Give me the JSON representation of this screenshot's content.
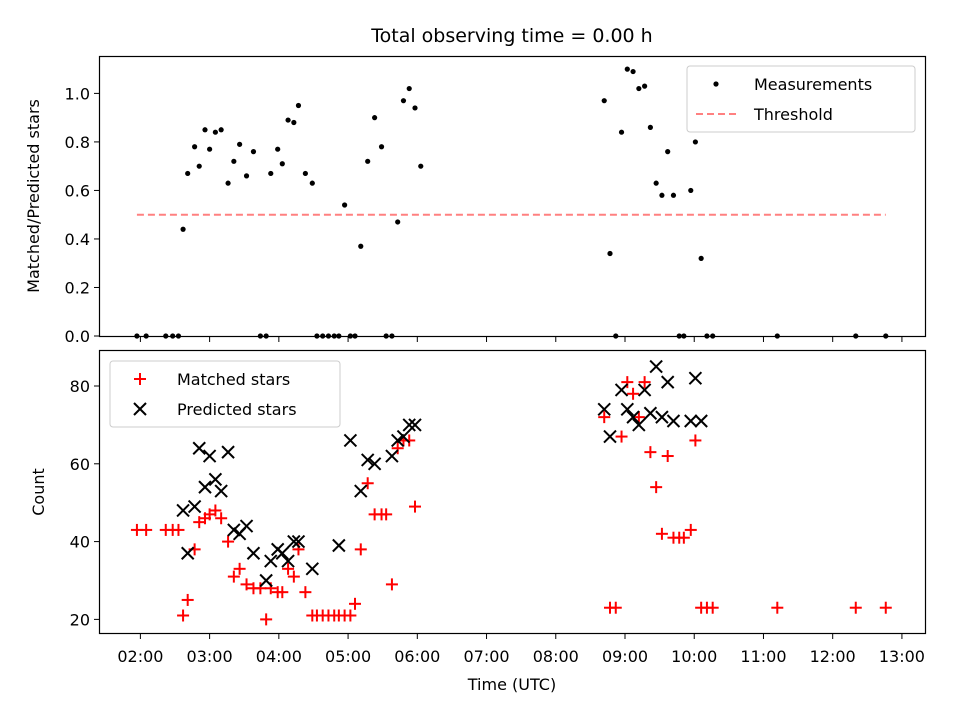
{
  "figure": {
    "title": "Total observing time = 0.00 h"
  },
  "chart_data": [
    {
      "type": "scatter",
      "panel": "top",
      "title": "Total observing time = 0.00 h",
      "xlabel": "",
      "ylabel": "Matched/Predicted stars",
      "x_axis": "time (UTC, HH:MM)",
      "xlim": [
        "01:25",
        "13:20"
      ],
      "ylim": [
        0,
        1.15
      ],
      "yticks": [
        0.0,
        0.2,
        0.4,
        0.6,
        0.8,
        1.0
      ],
      "ytick_labels": [
        "0.0",
        "0.2",
        "0.4",
        "0.6",
        "0.8",
        "1.0"
      ],
      "legend": {
        "position": "upper right",
        "entries": [
          "Measurements",
          "Threshold"
        ]
      },
      "grid": false,
      "series": [
        {
          "name": "Measurements",
          "marker": "dot",
          "color": "#000000",
          "points": [
            [
              "01:57",
              0.0
            ],
            [
              "02:05",
              0.0
            ],
            [
              "02:22",
              0.0
            ],
            [
              "02:28",
              0.0
            ],
            [
              "02:33",
              0.0
            ],
            [
              "02:37",
              0.44
            ],
            [
              "02:41",
              0.67
            ],
            [
              "02:47",
              0.78
            ],
            [
              "02:51",
              0.7
            ],
            [
              "02:56",
              0.85
            ],
            [
              "03:00",
              0.77
            ],
            [
              "03:05",
              0.84
            ],
            [
              "03:10",
              0.85
            ],
            [
              "03:16",
              0.63
            ],
            [
              "03:21",
              0.72
            ],
            [
              "03:26",
              0.79
            ],
            [
              "03:32",
              0.66
            ],
            [
              "03:38",
              0.76
            ],
            [
              "03:44",
              0.0
            ],
            [
              "03:49",
              0.0
            ],
            [
              "03:53",
              0.67
            ],
            [
              "03:59",
              0.77
            ],
            [
              "04:03",
              0.71
            ],
            [
              "04:08",
              0.89
            ],
            [
              "04:13",
              0.88
            ],
            [
              "04:17",
              0.95
            ],
            [
              "04:23",
              0.67
            ],
            [
              "04:29",
              0.63
            ],
            [
              "04:33",
              0.0
            ],
            [
              "04:38",
              0.0
            ],
            [
              "04:43",
              0.0
            ],
            [
              "04:48",
              0.0
            ],
            [
              "04:52",
              0.0
            ],
            [
              "04:57",
              0.54
            ],
            [
              "05:02",
              0.0
            ],
            [
              "05:06",
              0.0
            ],
            [
              "05:11",
              0.37
            ],
            [
              "05:17",
              0.72
            ],
            [
              "05:23",
              0.9
            ],
            [
              "05:29",
              0.78
            ],
            [
              "05:33",
              0.0
            ],
            [
              "05:38",
              0.0
            ],
            [
              "05:43",
              0.47
            ],
            [
              "05:48",
              0.97
            ],
            [
              "05:53",
              1.02
            ],
            [
              "05:58",
              0.94
            ],
            [
              "06:03",
              0.7
            ],
            [
              "08:42",
              0.97
            ],
            [
              "08:47",
              0.34
            ],
            [
              "08:52",
              0.0
            ],
            [
              "08:57",
              0.84
            ],
            [
              "09:02",
              1.1
            ],
            [
              "09:07",
              1.09
            ],
            [
              "09:12",
              1.02
            ],
            [
              "09:17",
              1.03
            ],
            [
              "09:22",
              0.86
            ],
            [
              "09:27",
              0.63
            ],
            [
              "09:32",
              0.58
            ],
            [
              "09:37",
              0.76
            ],
            [
              "09:42",
              0.58
            ],
            [
              "09:47",
              0.0
            ],
            [
              "09:51",
              0.0
            ],
            [
              "09:57",
              0.6
            ],
            [
              "10:01",
              0.8
            ],
            [
              "10:06",
              0.32
            ],
            [
              "10:11",
              0.0
            ],
            [
              "10:16",
              0.0
            ],
            [
              "11:12",
              0.0
            ],
            [
              "12:20",
              0.0
            ],
            [
              "12:46",
              0.0
            ]
          ]
        },
        {
          "name": "Threshold",
          "style": "dashed",
          "color": "#ff8080",
          "points": [
            [
              "01:57",
              0.5
            ],
            [
              "12:46",
              0.5
            ]
          ]
        }
      ]
    },
    {
      "type": "scatter",
      "panel": "bottom",
      "title": "",
      "xlabel": "Time (UTC)",
      "ylabel": "Count",
      "x_axis": "time (UTC, HH:MM)",
      "xlim": [
        "01:25",
        "13:20"
      ],
      "ylim": [
        16.5,
        89
      ],
      "xticks": [
        "02:00",
        "03:00",
        "04:00",
        "05:00",
        "06:00",
        "07:00",
        "08:00",
        "09:00",
        "10:00",
        "11:00",
        "12:00",
        "13:00"
      ],
      "yticks": [
        20,
        40,
        60,
        80
      ],
      "ytick_labels": [
        "20",
        "40",
        "60",
        "80"
      ],
      "legend": {
        "position": "upper left",
        "entries": [
          "Matched stars",
          "Predicted stars"
        ]
      },
      "grid": false,
      "series": [
        {
          "name": "Matched stars",
          "marker": "plus",
          "color": "#ff0000",
          "points": [
            [
              "01:57",
              43
            ],
            [
              "02:05",
              43
            ],
            [
              "02:22",
              43
            ],
            [
              "02:28",
              43
            ],
            [
              "02:33",
              43
            ],
            [
              "02:37",
              21
            ],
            [
              "02:41",
              25
            ],
            [
              "02:47",
              38
            ],
            [
              "02:51",
              45
            ],
            [
              "02:56",
              46
            ],
            [
              "03:00",
              47
            ],
            [
              "03:05",
              48
            ],
            [
              "03:10",
              46
            ],
            [
              "03:16",
              40
            ],
            [
              "03:21",
              31
            ],
            [
              "03:26",
              33
            ],
            [
              "03:32",
              29
            ],
            [
              "03:38",
              28
            ],
            [
              "03:44",
              28
            ],
            [
              "03:49",
              20
            ],
            [
              "03:53",
              28
            ],
            [
              "03:59",
              27
            ],
            [
              "04:03",
              27
            ],
            [
              "04:08",
              33
            ],
            [
              "04:13",
              31
            ],
            [
              "04:17",
              38
            ],
            [
              "04:23",
              27
            ],
            [
              "04:29",
              21
            ],
            [
              "04:33",
              21
            ],
            [
              "04:38",
              21
            ],
            [
              "04:43",
              21
            ],
            [
              "04:48",
              21
            ],
            [
              "04:52",
              21
            ],
            [
              "04:57",
              21
            ],
            [
              "05:02",
              21
            ],
            [
              "05:06",
              24
            ],
            [
              "05:11",
              38
            ],
            [
              "05:17",
              55
            ],
            [
              "05:23",
              47
            ],
            [
              "05:29",
              47
            ],
            [
              "05:33",
              47
            ],
            [
              "05:38",
              29
            ],
            [
              "05:43",
              64
            ],
            [
              "05:48",
              66
            ],
            [
              "05:53",
              66
            ],
            [
              "05:58",
              49
            ],
            [
              "08:42",
              72
            ],
            [
              "08:47",
              23
            ],
            [
              "08:52",
              23
            ],
            [
              "08:57",
              67
            ],
            [
              "09:02",
              81
            ],
            [
              "09:07",
              78
            ],
            [
              "09:12",
              72
            ],
            [
              "09:17",
              81
            ],
            [
              "09:22",
              63
            ],
            [
              "09:27",
              54
            ],
            [
              "09:32",
              42
            ],
            [
              "09:37",
              62
            ],
            [
              "09:42",
              41
            ],
            [
              "09:47",
              41
            ],
            [
              "09:51",
              41
            ],
            [
              "09:57",
              43
            ],
            [
              "10:01",
              66
            ],
            [
              "10:06",
              23
            ],
            [
              "10:11",
              23
            ],
            [
              "10:16",
              23
            ],
            [
              "11:12",
              23
            ],
            [
              "12:20",
              23
            ],
            [
              "12:46",
              23
            ]
          ]
        },
        {
          "name": "Predicted stars",
          "marker": "x",
          "color": "#000000",
          "points": [
            [
              "02:37",
              48
            ],
            [
              "02:41",
              37
            ],
            [
              "02:47",
              49
            ],
            [
              "02:51",
              64
            ],
            [
              "02:56",
              54
            ],
            [
              "03:00",
              62
            ],
            [
              "03:05",
              56
            ],
            [
              "03:10",
              53
            ],
            [
              "03:16",
              63
            ],
            [
              "03:21",
              43
            ],
            [
              "03:26",
              42
            ],
            [
              "03:32",
              44
            ],
            [
              "03:38",
              37
            ],
            [
              "03:49",
              30
            ],
            [
              "03:53",
              35
            ],
            [
              "03:59",
              38
            ],
            [
              "04:03",
              37
            ],
            [
              "04:08",
              35
            ],
            [
              "04:13",
              40
            ],
            [
              "04:17",
              40
            ],
            [
              "04:29",
              33
            ],
            [
              "04:52",
              39
            ],
            [
              "05:02",
              66
            ],
            [
              "05:11",
              53
            ],
            [
              "05:17",
              61
            ],
            [
              "05:23",
              60
            ],
            [
              "05:38",
              62
            ],
            [
              "05:43",
              66
            ],
            [
              "05:48",
              67
            ],
            [
              "05:53",
              70
            ],
            [
              "05:58",
              70
            ],
            [
              "08:42",
              74
            ],
            [
              "08:47",
              67
            ],
            [
              "08:57",
              79
            ],
            [
              "09:02",
              74
            ],
            [
              "09:07",
              72
            ],
            [
              "09:12",
              70
            ],
            [
              "09:17",
              79
            ],
            [
              "09:22",
              73
            ],
            [
              "09:27",
              85
            ],
            [
              "09:32",
              72
            ],
            [
              "09:37",
              81
            ],
            [
              "09:42",
              71
            ],
            [
              "09:57",
              71
            ],
            [
              "10:01",
              82
            ],
            [
              "10:06",
              71
            ]
          ]
        }
      ]
    }
  ]
}
